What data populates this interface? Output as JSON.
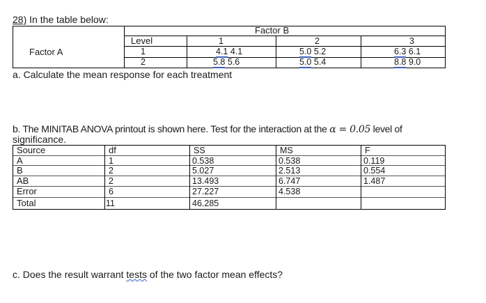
{
  "question": {
    "number": "28)",
    "intro": "In the table below:",
    "part_a": "a. Calculate the mean response for each treatment",
    "part_b_line1": "b. The MINITAB ANOVA printout is shown here. Test for the interaction at the",
    "part_b_alpha": "α = 0.05",
    "part_b_tail": "level of",
    "part_b_line2": "significance.",
    "part_c_prefix": "c. Does the result warrant",
    "part_c_link": "tests",
    "part_c_suffix": "of the two factor mean effects?"
  },
  "factor_table": {
    "factor_b_label": "Factor B",
    "factor_a_label": "Factor A",
    "level_label": "Level",
    "b_levels": [
      "1",
      "2",
      "3"
    ],
    "a_levels": [
      "1",
      "2"
    ],
    "cells": [
      [
        [
          "4.1",
          "4.1"
        ],
        [
          "5.0",
          "5.2"
        ],
        [
          "6.3",
          "6.1"
        ]
      ],
      [
        [
          "5.8",
          "5.6"
        ],
        [
          "5.0",
          "5.4"
        ],
        [
          "8.8",
          "9.0"
        ]
      ]
    ]
  },
  "anova_table": {
    "headers": [
      "Source",
      "df",
      "SS",
      "MS",
      "F"
    ],
    "rows": [
      [
        "A",
        "1",
        "0.538",
        "0.538",
        "0.119"
      ],
      [
        "B",
        "2",
        "5.027",
        "2.513",
        "0.554"
      ],
      [
        "AB",
        "2",
        "13.493",
        "6.747",
        "1.487"
      ],
      [
        "Error",
        "6",
        "27.227",
        "4.538",
        ""
      ],
      [
        "Total",
        "11",
        "46.285",
        "",
        ""
      ]
    ]
  }
}
